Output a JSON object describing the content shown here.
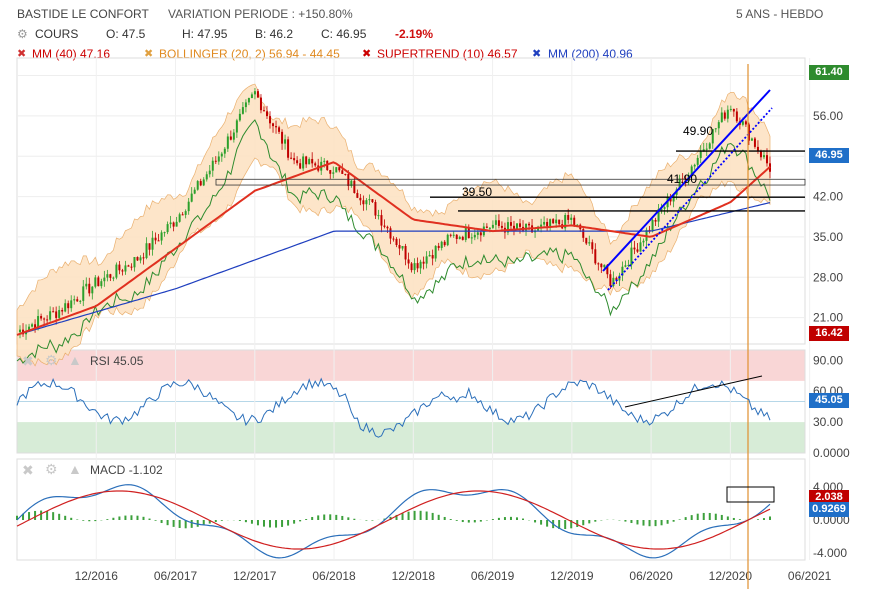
{
  "header": {
    "name": "BASTIDE LE CONFORT",
    "variation": "VARIATION PERIODE : +150.80%",
    "period": "5 ANS - HEBDO",
    "cours_label": "COURS",
    "open": "O: 47.5",
    "high": "H: 47.95",
    "low": "B: 46.2",
    "close": "C: 46.95",
    "change": "-2.19%",
    "mm40": "MM (40) 47.16",
    "bollinger": "BOLLINGER (20, 2) 56.94 - 44.45",
    "supertrend": "SUPERTREND (10) 46.57",
    "mm200": "MM (200) 40.96"
  },
  "colors": {
    "up": "#2ca02c",
    "down": "#c00000",
    "mm40": "#e03020",
    "mm200": "#1f3fbf",
    "bollinger_fill": "#fde3c4",
    "bollinger_line": "#e8a860",
    "supertrend": "#2e8b2e",
    "trend": "#0000ff",
    "rsi": "#2b6fba",
    "macd": "#2b6fba",
    "signal": "#d02020",
    "hist": "#3ca03c"
  },
  "price_badges": {
    "last": "61.40",
    "current": "46.95",
    "low": "16.42"
  },
  "levels": [
    {
      "label": "49.90",
      "value": 49.9
    },
    {
      "label": "41.90",
      "value": 41.9
    },
    {
      "label": "39.50",
      "value": 39.5
    }
  ],
  "rsi": {
    "label": "RSI",
    "value": "45.05",
    "ticks": [
      "90.00",
      "60.00",
      "30.00",
      "0.0000"
    ]
  },
  "macd": {
    "label": "MACD",
    "value": "-1.102",
    "signal_badge": "2.038",
    "macd_badge": "0.9269",
    "ticks": [
      "4.000",
      "0.0000",
      "-4.000"
    ]
  },
  "chart_data": {
    "type": "line",
    "title": "BASTIDE LE CONFORT",
    "x_ticks": [
      "12/2016",
      "06/2017",
      "12/2017",
      "06/2018",
      "12/2018",
      "06/2019",
      "12/2019",
      "06/2020",
      "12/2020",
      "06/2021"
    ],
    "y_ticks": [
      "63.00",
      "56.00",
      "49.00",
      "42.00",
      "35.00",
      "28.00",
      "21.00"
    ],
    "ylim": [
      16.42,
      65
    ],
    "grid": true,
    "legend": "top-left",
    "series": [
      {
        "name": "COURS",
        "x": [
          "2016-06",
          "2016-09",
          "2016-12",
          "2017-03",
          "2017-06",
          "2017-09",
          "2017-12",
          "2018-03",
          "2018-06",
          "2018-09",
          "2018-12",
          "2019-03",
          "2019-06",
          "2019-09",
          "2019-12",
          "2020-03",
          "2020-06",
          "2020-09",
          "2020-12",
          "2021-03"
        ],
        "values": [
          18.5,
          22,
          27,
          31,
          38,
          48,
          60,
          48,
          47,
          40,
          30,
          35,
          37,
          36,
          38,
          27,
          37,
          47,
          58,
          46.95
        ]
      },
      {
        "name": "MM (40)",
        "x": [
          "2016-06",
          "2016-12",
          "2017-06",
          "2017-12",
          "2018-06",
          "2018-12",
          "2019-06",
          "2019-12",
          "2020-06",
          "2020-12",
          "2021-03"
        ],
        "values": [
          18,
          23,
          33,
          43,
          48,
          38,
          36,
          37,
          35,
          41,
          47.16
        ]
      },
      {
        "name": "MM (200)",
        "x": [
          "2016-06",
          "2017-06",
          "2018-06",
          "2019-06",
          "2020-06",
          "2021-03"
        ],
        "values": [
          18,
          26,
          36,
          36,
          36,
          40.96
        ]
      }
    ]
  }
}
